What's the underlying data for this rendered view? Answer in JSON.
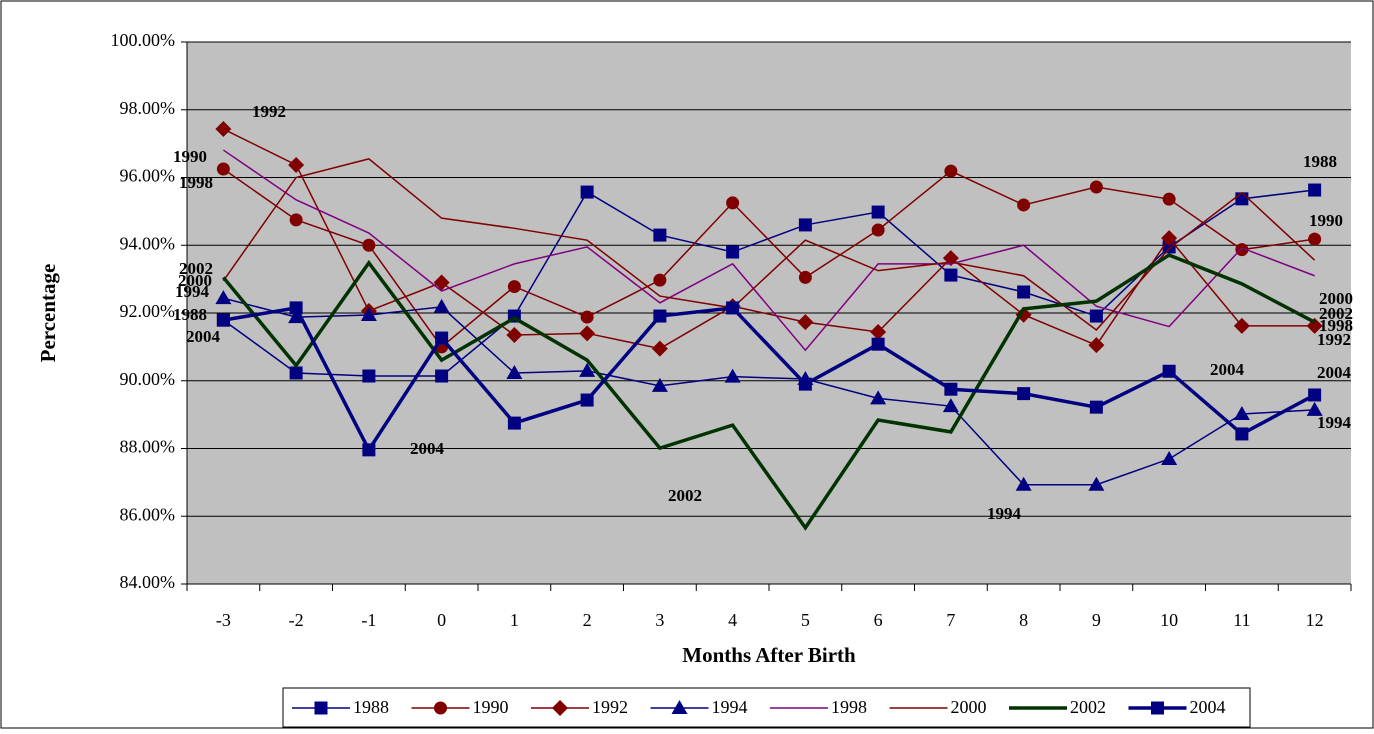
{
  "chart_data": {
    "type": "line",
    "x_label": "Months After Birth",
    "y_label": "Percentage",
    "categories": [
      "-3",
      "-2",
      "-1",
      "0",
      "1",
      "2",
      "3",
      "4",
      "5",
      "6",
      "7",
      "8",
      "9",
      "10",
      "11",
      "12"
    ],
    "ylim": [
      84,
      100
    ],
    "yticks": [
      {
        "value": 84,
        "label": "84.00%"
      },
      {
        "value": 86,
        "label": "86.00%"
      },
      {
        "value": 88,
        "label": "88.00%"
      },
      {
        "value": 90,
        "label": "90.00%"
      },
      {
        "value": 92,
        "label": "92.00%"
      },
      {
        "value": 94,
        "label": "94.00%"
      },
      {
        "value": 96,
        "label": "96.00%"
      },
      {
        "value": 98,
        "label": "98.00%"
      },
      {
        "value": 100,
        "label": "100.00%"
      }
    ],
    "grid": true,
    "legend": "bottom",
    "series": [
      {
        "name": "1988",
        "color": "#000080",
        "marker": "square",
        "values": [
          91.79,
          90.23,
          90.14,
          90.14,
          91.91,
          95.57,
          94.3,
          93.8,
          94.6,
          94.98,
          93.12,
          92.62,
          91.91,
          93.95,
          95.37,
          95.63
        ]
      },
      {
        "name": "1990",
        "color": "#800000",
        "marker": "circle",
        "values": [
          96.25,
          94.75,
          94.0,
          91.0,
          92.78,
          91.88,
          92.97,
          95.25,
          93.05,
          94.45,
          96.19,
          95.19,
          95.72,
          95.36,
          93.87,
          94.18
        ]
      },
      {
        "name": "1992",
        "color": "#800000",
        "marker": "diamond",
        "values": [
          97.43,
          96.37,
          92.06,
          92.9,
          91.35,
          91.4,
          90.95,
          92.2,
          91.73,
          91.44,
          93.62,
          91.95,
          91.05,
          94.21,
          91.62,
          91.62
        ]
      },
      {
        "name": "1994",
        "color": "#000080",
        "marker": "triangle",
        "values": [
          92.44,
          91.88,
          91.94,
          92.18,
          90.23,
          90.29,
          89.85,
          90.12,
          90.05,
          89.48,
          89.25,
          86.93,
          86.93,
          87.69,
          89.02,
          89.14
        ]
      },
      {
        "name": "1998",
        "color": "#800080",
        "marker": "none",
        "values": [
          96.81,
          95.34,
          94.36,
          92.65,
          93.45,
          93.95,
          92.3,
          93.45,
          90.9,
          93.45,
          93.45,
          94.0,
          92.2,
          91.6,
          93.92,
          93.1
        ]
      },
      {
        "name": "2000",
        "color": "#800000",
        "marker": "none",
        "values": [
          92.95,
          96.0,
          96.55,
          94.8,
          94.5,
          94.15,
          92.5,
          92.15,
          94.15,
          93.25,
          93.5,
          93.1,
          91.5,
          93.9,
          95.55,
          93.56
        ]
      },
      {
        "name": "2002",
        "color": "#003300",
        "marker": "none",
        "thick": true,
        "values": [
          93.05,
          90.45,
          93.48,
          90.61,
          91.85,
          90.61,
          88.01,
          88.69,
          85.66,
          88.84,
          88.49,
          92.12,
          92.35,
          93.71,
          92.86,
          91.73
        ]
      },
      {
        "name": "2004",
        "color": "#000080",
        "marker": "square",
        "thick": true,
        "values": [
          91.79,
          92.15,
          87.96,
          91.26,
          88.75,
          89.43,
          91.91,
          92.15,
          89.9,
          91.08,
          89.75,
          89.62,
          89.22,
          90.28,
          88.43,
          89.58
        ]
      }
    ],
    "annotations": [
      "1992",
      "1990",
      "1998",
      "2002",
      "2000",
      "1994",
      "1988",
      "2004",
      "2004",
      "2002",
      "1994",
      "2004",
      "1988",
      "1990",
      "2000",
      "2002",
      "1998",
      "1992",
      "2004",
      "1994"
    ]
  }
}
